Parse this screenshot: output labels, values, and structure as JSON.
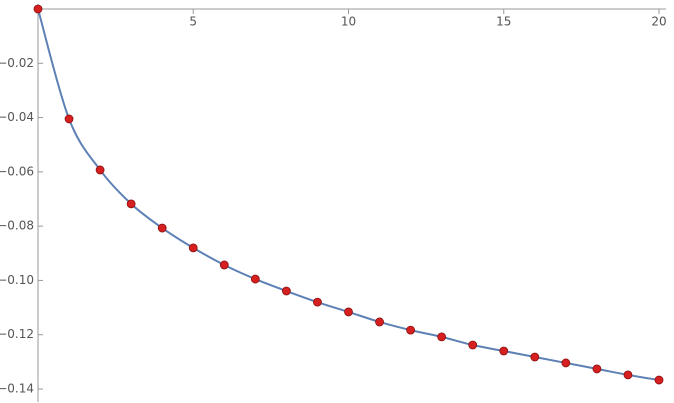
{
  "chart_data": {
    "type": "line",
    "x": [
      0,
      1,
      2,
      3,
      4,
      5,
      6,
      7,
      8,
      9,
      10,
      11,
      12,
      13,
      14,
      15,
      16,
      17,
      18,
      19,
      20
    ],
    "series": [
      {
        "color": "#5e81b5",
        "marker_color": "#d61f1f",
        "values": [
          0,
          -0.0405,
          -0.0593,
          -0.0718,
          -0.0807,
          -0.088,
          -0.0943,
          -0.0995,
          -0.1039,
          -0.108,
          -0.1116,
          -0.1153,
          -0.1183,
          -0.1208,
          -0.1238,
          -0.126,
          -0.1282,
          -0.1304,
          -0.1326,
          -0.1348,
          -0.1367
        ]
      }
    ],
    "xlim": [
      0,
      20
    ],
    "ylim": [
      -0.14,
      0
    ],
    "xticks": [
      5,
      10,
      15,
      20
    ],
    "yticks": [
      {
        "value": -0.02,
        "label": "−0.02"
      },
      {
        "value": -0.04,
        "label": "−0.04"
      },
      {
        "value": -0.06,
        "label": "−0.06"
      },
      {
        "value": -0.08,
        "label": "−0.08"
      },
      {
        "value": -0.1,
        "label": "−0.10"
      },
      {
        "value": -0.12,
        "label": "−0.12"
      },
      {
        "value": -0.14,
        "label": "−0.14"
      }
    ]
  }
}
